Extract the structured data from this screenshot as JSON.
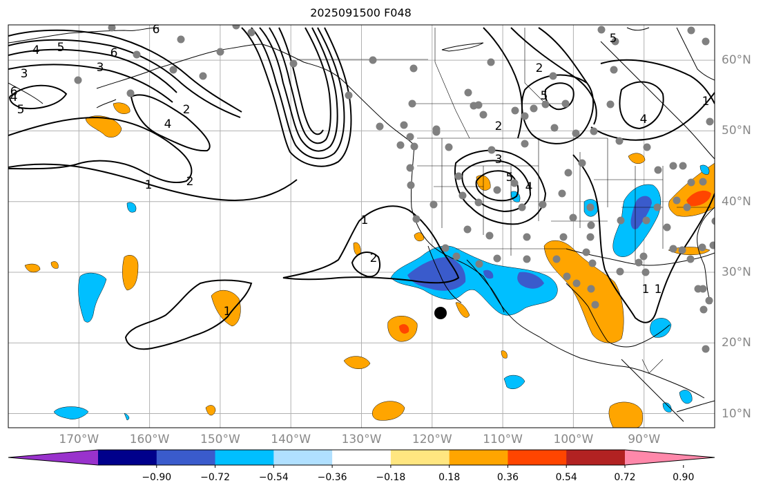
{
  "title": "2025091500 F048",
  "map": {
    "lon_labels": [
      "170°W",
      "160°W",
      "150°W",
      "140°W",
      "130°W",
      "120°W",
      "110°W",
      "100°W",
      "90°W"
    ],
    "lon_values": [
      -170,
      -160,
      -150,
      -140,
      -130,
      -120,
      -110,
      -100,
      -90
    ],
    "lat_labels": [
      "60°N",
      "50°N",
      "40°N",
      "30°N",
      "20°N",
      "10°N"
    ],
    "lat_values": [
      60,
      50,
      40,
      30,
      20,
      10
    ],
    "lon_range": [
      -180,
      -80
    ],
    "lat_range": [
      8,
      65
    ],
    "contour_labels": [
      "1",
      "1",
      "1",
      "1",
      "1",
      "1",
      "2",
      "2",
      "2",
      "2",
      "2",
      "3",
      "3",
      "3",
      "4",
      "4",
      "4",
      "4",
      "4",
      "5",
      "5",
      "5",
      "5",
      "5",
      "6",
      "6",
      "6"
    ],
    "marker_color": "#000000",
    "station_color": "#808080"
  },
  "colorbar": {
    "labels": [
      "−0.90",
      "−0.72",
      "−0.54",
      "−0.36",
      "−0.18",
      "0.18",
      "0.36",
      "0.54",
      "0.72",
      "0.90"
    ],
    "colors": [
      "#9932cc",
      "#00008b",
      "#3a5bcc",
      "#00bfff",
      "#b0e0ff",
      "#ffffff",
      "#ffe680",
      "#ffa500",
      "#ff4500",
      "#b22222",
      "#ff88aa"
    ]
  }
}
